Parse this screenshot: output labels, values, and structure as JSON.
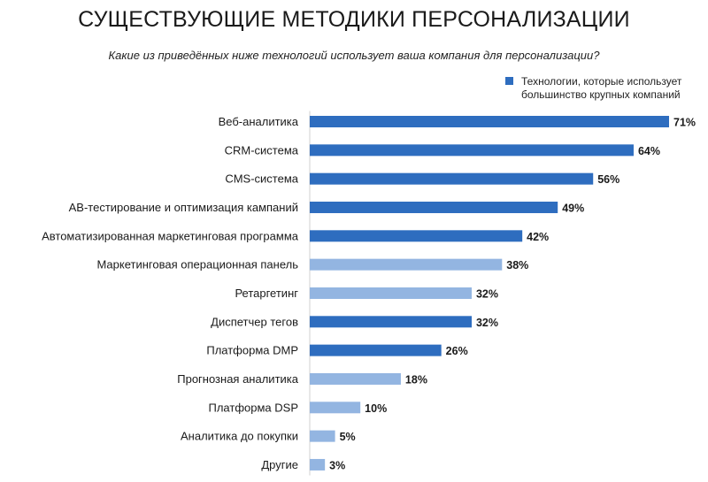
{
  "chart_data": {
    "type": "bar",
    "orientation": "horizontal",
    "title": "СУЩЕСТВУЮЩИЕ МЕТОДИКИ ПЕРСОНАЛИЗАЦИИ",
    "subtitle": "Какие из приведённых ниже технологий использует ваша компания для персонализации?",
    "legend": {
      "label": "Технологии, которые использует большинство крупных компаний",
      "color": "#2e6dbf",
      "placement": "top-right"
    },
    "colors": {
      "highlight": "#2e6dbf",
      "other": "#93b5e1"
    },
    "value_suffix": "%",
    "xlim": [
      0,
      71
    ],
    "categories": [
      "Веб-аналитика",
      "CRM-система",
      "CMS-система",
      "АВ-тестирование и оптимизация кампаний",
      "Автоматизированная маркетинговая программа",
      "Маркетинговая операционная панель",
      "Ретаргетинг",
      "Диспетчер тегов",
      "Платформа DMP",
      "Прогнозная аналитика",
      "Платформа DSP",
      "Аналитика до покупки",
      "Другие"
    ],
    "values": [
      71,
      64,
      56,
      49,
      42,
      38,
      32,
      32,
      26,
      18,
      10,
      5,
      3
    ],
    "highlighted": [
      true,
      true,
      true,
      true,
      true,
      false,
      false,
      true,
      true,
      false,
      false,
      false,
      false
    ]
  }
}
